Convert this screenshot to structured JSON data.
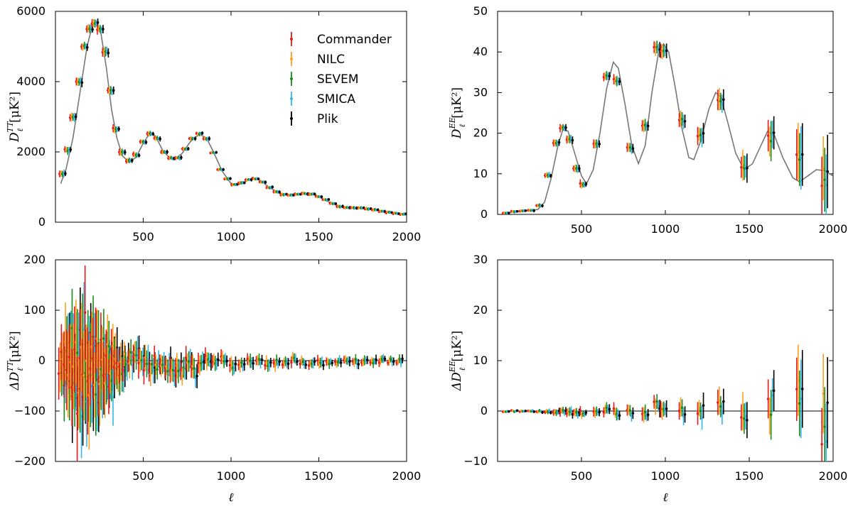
{
  "chart_data": [
    {
      "id": "tt",
      "type": "scatter",
      "xlim": [
        0,
        2000
      ],
      "ylim": [
        0,
        6000
      ],
      "xticks": [
        "500",
        "1000",
        "1500",
        "2000"
      ],
      "yticks": [
        "0",
        "2000",
        "4000",
        "6000"
      ],
      "ylabel_sym": "D",
      "ylabel_sup": "TT",
      "ylabel_sub": "ℓ",
      "ylabel_unit": "[μK²]",
      "legend": {
        "position": "top-right",
        "entries": [
          "Commander",
          "NILC",
          "SEVEM",
          "SMICA",
          "Plik"
        ]
      },
      "model_curve": [
        [
          30,
          1100
        ],
        [
          60,
          1500
        ],
        [
          100,
          2400
        ],
        [
          140,
          3700
        ],
        [
          180,
          5000
        ],
        [
          210,
          5600
        ],
        [
          230,
          5700
        ],
        [
          260,
          5350
        ],
        [
          290,
          4400
        ],
        [
          320,
          3200
        ],
        [
          350,
          2400
        ],
        [
          380,
          1900
        ],
        [
          420,
          1700
        ],
        [
          460,
          1850
        ],
        [
          500,
          2250
        ],
        [
          540,
          2550
        ],
        [
          570,
          2450
        ],
        [
          610,
          2050
        ],
        [
          650,
          1830
        ],
        [
          680,
          1800
        ],
        [
          720,
          1950
        ],
        [
          770,
          2300
        ],
        [
          820,
          2500
        ],
        [
          860,
          2400
        ],
        [
          900,
          2000
        ],
        [
          950,
          1450
        ],
        [
          1000,
          1100
        ],
        [
          1050,
          1080
        ],
        [
          1100,
          1200
        ],
        [
          1130,
          1250
        ],
        [
          1170,
          1180
        ],
        [
          1220,
          980
        ],
        [
          1280,
          820
        ],
        [
          1340,
          760
        ],
        [
          1400,
          800
        ],
        [
          1440,
          820
        ],
        [
          1480,
          780
        ],
        [
          1530,
          640
        ],
        [
          1590,
          500
        ],
        [
          1650,
          420
        ],
        [
          1700,
          410
        ],
        [
          1760,
          400
        ],
        [
          1820,
          360
        ],
        [
          1880,
          290
        ],
        [
          1940,
          240
        ],
        [
          1995,
          220
        ]
      ],
      "binned_points": [
        [
          40,
          1400,
          90
        ],
        [
          70,
          2050,
          90
        ],
        [
          100,
          3000,
          100
        ],
        [
          135,
          4000,
          100
        ],
        [
          165,
          5000,
          100
        ],
        [
          195,
          5500,
          110
        ],
        [
          225,
          5650,
          110
        ],
        [
          255,
          5500,
          110
        ],
        [
          285,
          4850,
          110
        ],
        [
          315,
          3750,
          100
        ],
        [
          345,
          2650,
          90
        ],
        [
          380,
          1980,
          80
        ],
        [
          420,
          1750,
          70
        ],
        [
          460,
          1920,
          60
        ],
        [
          500,
          2280,
          60
        ],
        [
          540,
          2520,
          60
        ],
        [
          580,
          2380,
          60
        ],
        [
          620,
          2000,
          50
        ],
        [
          660,
          1820,
          50
        ],
        [
          700,
          1830,
          50
        ],
        [
          740,
          2080,
          50
        ],
        [
          780,
          2380,
          50
        ],
        [
          820,
          2520,
          50
        ],
        [
          860,
          2380,
          50
        ],
        [
          900,
          1980,
          40
        ],
        [
          940,
          1500,
          40
        ],
        [
          980,
          1230,
          40
        ],
        [
          1020,
          1080,
          40
        ],
        [
          1060,
          1120,
          40
        ],
        [
          1100,
          1210,
          40
        ],
        [
          1140,
          1240,
          40
        ],
        [
          1180,
          1140,
          40
        ],
        [
          1220,
          990,
          40
        ],
        [
          1260,
          870,
          40
        ],
        [
          1300,
          790,
          40
        ],
        [
          1340,
          770,
          40
        ],
        [
          1380,
          790,
          40
        ],
        [
          1420,
          810,
          40
        ],
        [
          1460,
          800,
          40
        ],
        [
          1500,
          730,
          40
        ],
        [
          1540,
          640,
          40
        ],
        [
          1580,
          530,
          40
        ],
        [
          1620,
          450,
          40
        ],
        [
          1660,
          420,
          40
        ],
        [
          1700,
          410,
          40
        ],
        [
          1740,
          400,
          40
        ],
        [
          1780,
          380,
          40
        ],
        [
          1820,
          350,
          40
        ],
        [
          1860,
          310,
          40
        ],
        [
          1900,
          280,
          40
        ],
        [
          1940,
          250,
          40
        ],
        [
          1980,
          230,
          40
        ]
      ]
    },
    {
      "id": "ee",
      "type": "scatter",
      "xlim": [
        0,
        2000
      ],
      "ylim": [
        0,
        50
      ],
      "xticks": [
        "500",
        "1000",
        "1500",
        "2000"
      ],
      "yticks": [
        "0",
        "10",
        "20",
        "30",
        "40",
        "50"
      ],
      "ylabel_sym": "D",
      "ylabel_sup": "EE",
      "ylabel_sub": "ℓ",
      "ylabel_unit": "[μK²]",
      "model_curve": [
        [
          30,
          0.3
        ],
        [
          100,
          0.6
        ],
        [
          150,
          0.9
        ],
        [
          200,
          1
        ],
        [
          240,
          1.2
        ],
        [
          280,
          3
        ],
        [
          320,
          9
        ],
        [
          360,
          17
        ],
        [
          390,
          21
        ],
        [
          420,
          20.5
        ],
        [
          460,
          15
        ],
        [
          500,
          9.5
        ],
        [
          530,
          7.5
        ],
        [
          570,
          11
        ],
        [
          610,
          20
        ],
        [
          650,
          31
        ],
        [
          690,
          37.5
        ],
        [
          720,
          36
        ],
        [
          760,
          27
        ],
        [
          800,
          17
        ],
        [
          840,
          12.5
        ],
        [
          880,
          17
        ],
        [
          920,
          30
        ],
        [
          960,
          40
        ],
        [
          990,
          42
        ],
        [
          1020,
          40
        ],
        [
          1060,
          31
        ],
        [
          1100,
          21
        ],
        [
          1140,
          14
        ],
        [
          1170,
          13.5
        ],
        [
          1210,
          18
        ],
        [
          1260,
          26
        ],
        [
          1300,
          30
        ],
        [
          1330,
          29
        ],
        [
          1370,
          23
        ],
        [
          1420,
          15
        ],
        [
          1470,
          11
        ],
        [
          1520,
          12.5
        ],
        [
          1570,
          17
        ],
        [
          1610,
          20.5
        ],
        [
          1650,
          19.5
        ],
        [
          1700,
          14
        ],
        [
          1760,
          9
        ],
        [
          1800,
          8
        ],
        [
          1850,
          9.5
        ],
        [
          1900,
          11
        ],
        [
          1950,
          10.8
        ],
        [
          1998,
          9.5
        ]
      ],
      "binned_points": [
        [
          50,
          0.4,
          0.3
        ],
        [
          100,
          0.7,
          0.3
        ],
        [
          150,
          0.9,
          0.3
        ],
        [
          200,
          1,
          0.3
        ],
        [
          250,
          2.2,
          0.4
        ],
        [
          300,
          9.6,
          0.6
        ],
        [
          350,
          17.5,
          0.8
        ],
        [
          390,
          21.4,
          0.8
        ],
        [
          430,
          18.5,
          0.8
        ],
        [
          470,
          11.3,
          0.8
        ],
        [
          510,
          7.4,
          0.8
        ],
        [
          590,
          17.2,
          0.9
        ],
        [
          650,
          34,
          1
        ],
        [
          710,
          33,
          1
        ],
        [
          790,
          16.3,
          1.1
        ],
        [
          880,
          21.9,
          1.2
        ],
        [
          950,
          40.8,
          1.5
        ],
        [
          990,
          40.3,
          1.5
        ],
        [
          1100,
          23.1,
          1.6
        ],
        [
          1210,
          19.5,
          2
        ],
        [
          1330,
          27.8,
          2.5
        ],
        [
          1470,
          11.5,
          3
        ],
        [
          1630,
          19,
          4
        ],
        [
          1800,
          15,
          6
        ],
        [
          1950,
          9,
          9
        ]
      ]
    },
    {
      "id": "dtt",
      "type": "scatter",
      "xlim": [
        0,
        2000
      ],
      "ylim": [
        -250,
        250
      ],
      "xticks": [
        "500",
        "1000",
        "1500",
        "2000"
      ],
      "yticks": [
        "−200",
        "−100",
        "0",
        "100",
        "200"
      ],
      "ylabel_sym": "ΔD",
      "ylabel_sup": "TT",
      "ylabel_sub": "ℓ",
      "ylabel_unit": "[μK²]",
      "residual_points": [
        [
          35,
          10,
          60
        ],
        [
          50,
          -20,
          70
        ],
        [
          65,
          40,
          80
        ],
        [
          80,
          -30,
          90
        ],
        [
          95,
          25,
          90
        ],
        [
          110,
          -60,
          100
        ],
        [
          125,
          10,
          100
        ],
        [
          140,
          -80,
          110
        ],
        [
          155,
          30,
          100
        ],
        [
          170,
          -40,
          100
        ],
        [
          185,
          60,
          90
        ],
        [
          200,
          -100,
          110
        ],
        [
          215,
          20,
          90
        ],
        [
          230,
          -50,
          80
        ],
        [
          245,
          15,
          80
        ],
        [
          260,
          -40,
          80
        ],
        [
          275,
          10,
          70
        ],
        [
          290,
          -30,
          70
        ],
        [
          305,
          0,
          60
        ],
        [
          320,
          -50,
          60
        ],
        [
          335,
          10,
          50
        ],
        [
          350,
          -20,
          50
        ],
        [
          365,
          -15,
          40
        ],
        [
          380,
          -10,
          40
        ],
        [
          400,
          -5,
          35
        ],
        [
          430,
          5,
          30
        ],
        [
          460,
          10,
          30
        ],
        [
          490,
          15,
          30
        ],
        [
          520,
          -10,
          30
        ],
        [
          550,
          -20,
          30
        ],
        [
          580,
          -5,
          25
        ],
        [
          610,
          -15,
          25
        ],
        [
          640,
          -10,
          25
        ],
        [
          670,
          -20,
          25
        ],
        [
          700,
          -15,
          25
        ],
        [
          730,
          -25,
          25
        ],
        [
          760,
          -10,
          25
        ],
        [
          790,
          -30,
          25
        ],
        [
          830,
          -5,
          20
        ],
        [
          870,
          5,
          20
        ],
        [
          910,
          -5,
          18
        ],
        [
          960,
          0,
          16
        ],
        [
          1010,
          -10,
          15
        ],
        [
          1060,
          -5,
          14
        ],
        [
          1110,
          0,
          14
        ],
        [
          1160,
          -5,
          13
        ],
        [
          1210,
          -8,
          13
        ],
        [
          1260,
          -6,
          12
        ],
        [
          1310,
          -4,
          12
        ],
        [
          1360,
          2,
          12
        ],
        [
          1410,
          -5,
          11
        ],
        [
          1460,
          -6,
          11
        ],
        [
          1510,
          -4,
          11
        ],
        [
          1560,
          -3,
          10
        ],
        [
          1610,
          -2,
          10
        ],
        [
          1660,
          -3,
          10
        ],
        [
          1710,
          -2,
          10
        ],
        [
          1760,
          -1,
          10
        ],
        [
          1810,
          -2,
          10
        ],
        [
          1860,
          -1,
          9
        ],
        [
          1910,
          -1,
          9
        ],
        [
          1960,
          0,
          9
        ]
      ]
    },
    {
      "id": "dee",
      "type": "scatter",
      "xlim": [
        0,
        2000
      ],
      "ylim": [
        -10,
        30
      ],
      "xticks": [
        "500",
        "1000",
        "1500",
        "2000"
      ],
      "yticks": [
        "−10",
        "0",
        "10",
        "20",
        "30"
      ],
      "ylabel_sym": "ΔD",
      "ylabel_sup": "EE",
      "ylabel_sub": "ℓ",
      "ylabel_unit": "[μK²]",
      "residual_points": [
        [
          50,
          0,
          0.2
        ],
        [
          100,
          0,
          0.2
        ],
        [
          150,
          0,
          0.2
        ],
        [
          200,
          0,
          0.2
        ],
        [
          250,
          -0.1,
          0.3
        ],
        [
          300,
          -0.2,
          0.4
        ],
        [
          350,
          -0.4,
          0.6
        ],
        [
          390,
          0.1,
          0.7
        ],
        [
          430,
          -0.2,
          0.7
        ],
        [
          470,
          -0.3,
          0.7
        ],
        [
          510,
          -0.4,
          0.7
        ],
        [
          590,
          -0.5,
          0.8
        ],
        [
          650,
          0.2,
          1
        ],
        [
          710,
          -0.2,
          1
        ],
        [
          790,
          -0.3,
          1.1
        ],
        [
          880,
          -0.5,
          1.2
        ],
        [
          950,
          1,
          1.4
        ],
        [
          990,
          0.5,
          1.4
        ],
        [
          1100,
          -0.3,
          1.6
        ],
        [
          1210,
          0,
          2
        ],
        [
          1330,
          0.8,
          2.5
        ],
        [
          1470,
          -1.5,
          3
        ],
        [
          1630,
          1.5,
          4
        ],
        [
          1800,
          5,
          6
        ],
        [
          1950,
          -2,
          9
        ]
      ]
    }
  ],
  "series": [
    {
      "name": "Commander",
      "color": "#e41a1c"
    },
    {
      "name": "NILC",
      "color": "#ff9f1c"
    },
    {
      "name": "SEVEM",
      "color": "#1a8a1a"
    },
    {
      "name": "SMICA",
      "color": "#35b6e6"
    },
    {
      "name": "Plik",
      "color": "#000000"
    }
  ],
  "xlabel": "ℓ"
}
